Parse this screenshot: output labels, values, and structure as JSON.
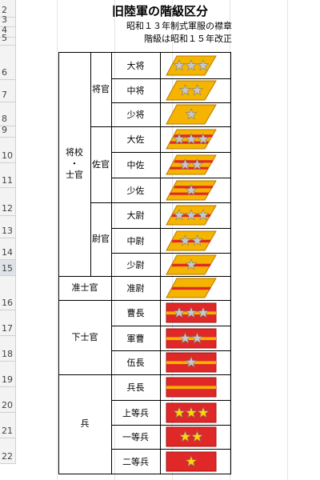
{
  "title": "旧陸軍の階級区分",
  "subtitle": "昭和１３年制式軍服の襟章",
  "subtitle2": "階級は昭和１５年改正",
  "row_numbers": [
    "2",
    "3",
    "4",
    "5",
    "6",
    "7",
    "8",
    "9",
    "10",
    "11",
    "12",
    "13",
    "14",
    "15",
    "16",
    "17",
    "18",
    "19",
    "20",
    "21",
    "22"
  ],
  "selected_row": "15",
  "categories": {
    "shoko_shikan": "将校\n・\n士官",
    "shokan": "将官",
    "sakan": "佐官",
    "ikan": "尉官",
    "junshikan": "准士官",
    "kashikan": "下士官",
    "hei": "兵"
  },
  "ranks": [
    {
      "name": "大将",
      "stars": 3,
      "style": "gold",
      "stripes": 0
    },
    {
      "name": "中将",
      "stars": 2,
      "style": "gold",
      "stripes": 0
    },
    {
      "name": "少将",
      "stars": 1,
      "style": "gold",
      "stripes": 0
    },
    {
      "name": "大佐",
      "stars": 3,
      "style": "gold",
      "stripes": 2
    },
    {
      "name": "中佐",
      "stars": 2,
      "style": "gold",
      "stripes": 2
    },
    {
      "name": "少佐",
      "stars": 1,
      "style": "gold",
      "stripes": 2
    },
    {
      "name": "大尉",
      "stars": 3,
      "style": "gold",
      "stripes": 1
    },
    {
      "name": "中尉",
      "stars": 2,
      "style": "gold",
      "stripes": 1
    },
    {
      "name": "少尉",
      "stars": 1,
      "style": "gold",
      "stripes": 1
    },
    {
      "name": "准尉",
      "stars": 0,
      "style": "gold",
      "stripes": 1
    },
    {
      "name": "曹長",
      "stars": 3,
      "style": "red_band",
      "stripes": 0
    },
    {
      "name": "軍曹",
      "stars": 2,
      "style": "red_band",
      "stripes": 0
    },
    {
      "name": "伍長",
      "stars": 1,
      "style": "red_band",
      "stripes": 0
    },
    {
      "name": "兵長",
      "stars": 0,
      "style": "red_band",
      "stripes": 0
    },
    {
      "name": "上等兵",
      "stars": 3,
      "style": "red_plain",
      "stripes": 0
    },
    {
      "name": "一等兵",
      "stars": 2,
      "style": "red_plain",
      "stripes": 0
    },
    {
      "name": "二等兵",
      "stars": 1,
      "style": "red_plain",
      "stripes": 0
    }
  ],
  "colors": {
    "gold": "#f4b400",
    "gold_edge": "#b97a00",
    "red": "#e02828",
    "red_dark": "#a31515",
    "star_silver": "#c8c8c8",
    "star_gold": "#ffd400",
    "border": "#000000"
  }
}
